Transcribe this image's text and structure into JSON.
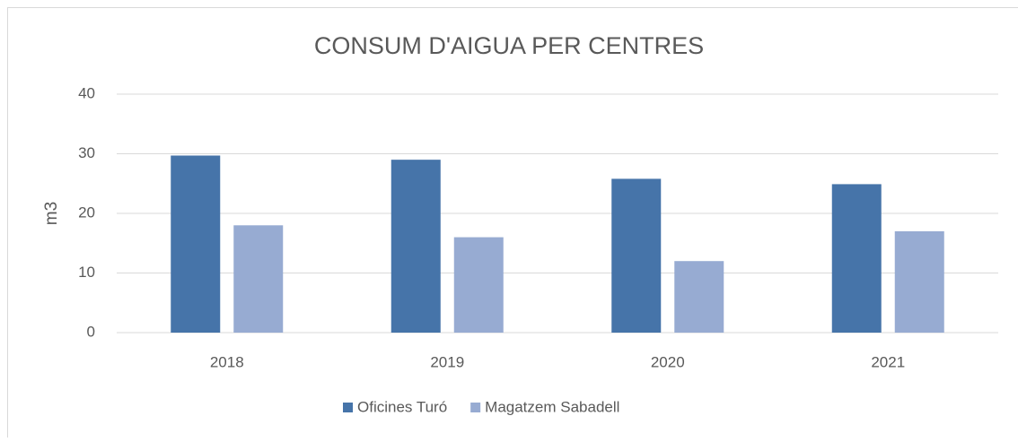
{
  "chart_data": {
    "type": "bar",
    "title": "CONSUM D'AIGUA PER CENTRES",
    "y_label": "m3",
    "categories": [
      "2018",
      "2019",
      "2020",
      "2021"
    ],
    "series": [
      {
        "name": "Oficines Turó",
        "color": "#4674a9",
        "values": [
          29.7,
          29,
          25.8,
          24.9
        ]
      },
      {
        "name": "Magatzem Sabadell",
        "color": "#97abd2",
        "values": [
          18,
          16,
          12,
          17
        ]
      }
    ],
    "ylim": [
      0,
      40
    ],
    "yticks": [
      0,
      10,
      20,
      30,
      40
    ],
    "grid": true,
    "legend": "bottom"
  }
}
